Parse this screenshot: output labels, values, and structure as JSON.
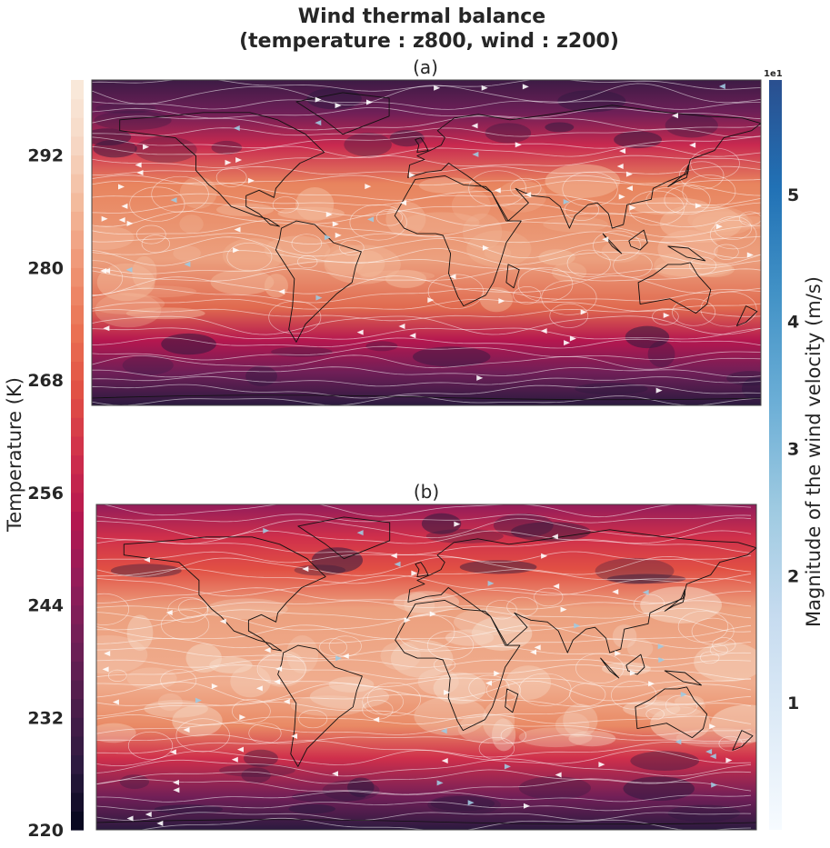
{
  "chart_data": {
    "type": "heatmap",
    "title_line1": "Wind thermal balance",
    "title_line2": "(temperature : z800, wind : z200)",
    "panels": [
      {
        "label": "(a)",
        "variable": "Temperature at z800 with wind streamlines at z200"
      },
      {
        "label": "(b)",
        "variable": "Temperature at z800 with wind streamlines at z200"
      }
    ],
    "temperature_colorbar": {
      "label": "Temperature (K)",
      "range": [
        220,
        300
      ],
      "ticks": [
        220,
        232,
        244,
        256,
        268,
        280,
        292
      ],
      "tick_labels": [
        "220",
        "232",
        "244",
        "256",
        "268",
        "280",
        "292"
      ],
      "colormap": "rocket",
      "levels": 40
    },
    "wind_colorbar": {
      "label": "Magnitude of the wind velocity (m/s)",
      "range": [
        0.0,
        5.9
      ],
      "ticks": [
        1,
        2,
        3,
        4,
        5
      ],
      "tick_labels": [
        "1",
        "2",
        "3",
        "4",
        "5"
      ],
      "offset_text": "1e1",
      "colormap": "Blues"
    }
  },
  "colors": {
    "rocket": [
      "#03051a",
      "#2b1a3f",
      "#4c1d4b",
      "#701f57",
      "#931c5a",
      "#b5174f",
      "#cf2f4b",
      "#e15044",
      "#ea7253",
      "#ef9574",
      "#f3b99b",
      "#f6d8c5",
      "#faebdd"
    ],
    "blues": [
      "#f7fbff",
      "#deebf7",
      "#c6dbef",
      "#9ecae1",
      "#6baed6",
      "#4292c6",
      "#2171b5",
      "#2a4f8f"
    ],
    "streamline": "#ffffff",
    "coastline": "#111111"
  }
}
